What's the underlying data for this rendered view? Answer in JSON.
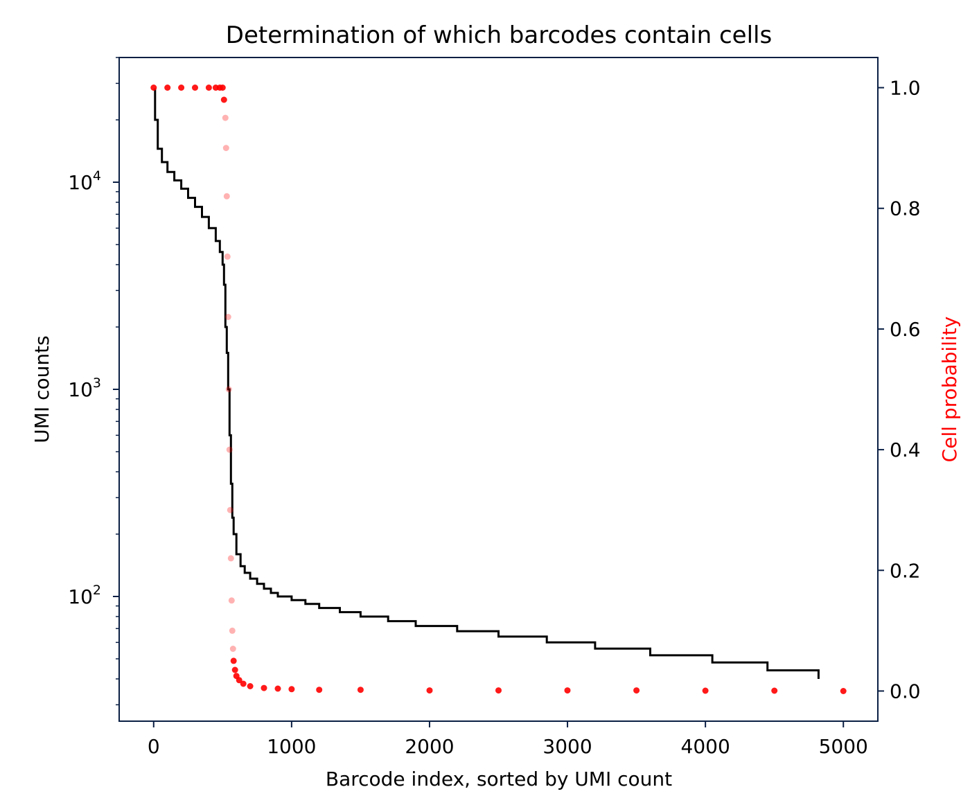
{
  "chart_data": {
    "type": "line",
    "title": "Determination of which barcodes contain cells",
    "xlabel": "Barcode index, sorted by UMI count",
    "ylabel": "UMI counts",
    "ylabel_right": "Cell probability",
    "xlim": [
      -250,
      5250
    ],
    "ylim_left": [
      25,
      40000
    ],
    "yscale_left": "log",
    "ylim_right": [
      -0.05,
      1.05
    ],
    "x_ticks": [
      "0",
      "1000",
      "2000",
      "3000",
      "4000",
      "5000"
    ],
    "y_left_ticks": [
      {
        "base": "10",
        "exp": "2"
      },
      {
        "base": "10",
        "exp": "3"
      },
      {
        "base": "10",
        "exp": "4"
      }
    ],
    "y_right_ticks": [
      "0.0",
      "0.2",
      "0.4",
      "0.6",
      "0.8",
      "1.0"
    ],
    "colors": {
      "umi_line": "#000000",
      "probability": "#ff0000",
      "axes": "#0a1f44"
    },
    "series": [
      {
        "axis": "left",
        "style": "step-line",
        "x": [
          0,
          10,
          30,
          60,
          100,
          150,
          200,
          250,
          300,
          350,
          400,
          450,
          480,
          500,
          510,
          520,
          530,
          540,
          550,
          560,
          570,
          580,
          600,
          630,
          660,
          700,
          750,
          800,
          850,
          900,
          1000,
          1100,
          1200,
          1350,
          1500,
          1700,
          1900,
          2200,
          2500,
          2850,
          3200,
          3600,
          4050,
          4450,
          4820
        ],
        "y": [
          28000,
          20000,
          14500,
          12500,
          11200,
          10200,
          9300,
          8400,
          7600,
          6800,
          6000,
          5200,
          4600,
          4000,
          3200,
          2000,
          1500,
          1000,
          600,
          350,
          240,
          200,
          160,
          140,
          130,
          122,
          115,
          109,
          104,
          100,
          96,
          92,
          88,
          84,
          80,
          76,
          72,
          68,
          64,
          60,
          56,
          52,
          48,
          44,
          40
        ]
      },
      {
        "axis": "right",
        "style": "scatter",
        "x": [
          0,
          100,
          200,
          300,
          400,
          450,
          480,
          500,
          510,
          520,
          525,
          530,
          535,
          540,
          545,
          550,
          555,
          560,
          565,
          570,
          575,
          580,
          590,
          600,
          620,
          650,
          700,
          800,
          900,
          1000,
          1200,
          1500,
          2000,
          2500,
          3000,
          3500,
          4000,
          4500,
          5000
        ],
        "y": [
          1.0,
          1.0,
          1.0,
          1.0,
          1.0,
          1.0,
          1.0,
          1.0,
          0.98,
          0.95,
          0.9,
          0.82,
          0.72,
          0.62,
          0.5,
          0.4,
          0.3,
          0.22,
          0.15,
          0.1,
          0.07,
          0.05,
          0.035,
          0.025,
          0.018,
          0.012,
          0.008,
          0.005,
          0.004,
          0.003,
          0.002,
          0.002,
          0.001,
          0.001,
          0.001,
          0.001,
          0.0005,
          0.0005,
          0.0
        ]
      }
    ]
  }
}
